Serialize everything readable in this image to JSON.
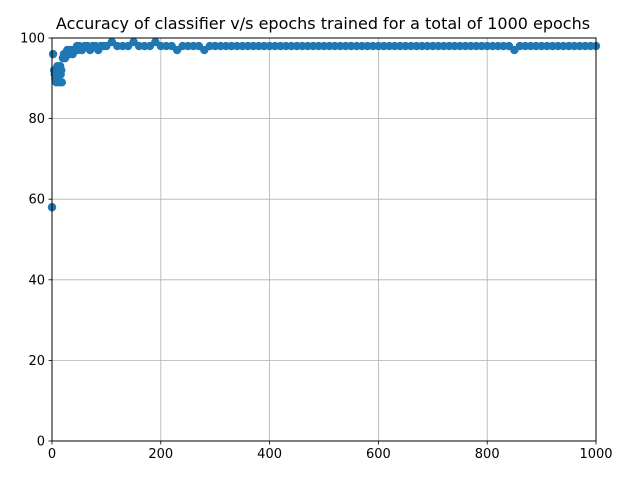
{
  "chart_data": {
    "type": "scatter",
    "title": "Accuracy of classifier v/s epochs trained for a total of 1000 epochs",
    "xlabel": "",
    "ylabel": "",
    "xlim": [
      0,
      1000
    ],
    "ylim": [
      0,
      100
    ],
    "xticks": [
      0,
      200,
      400,
      600,
      800,
      1000
    ],
    "yticks": [
      0,
      20,
      40,
      60,
      80,
      100
    ],
    "grid": true,
    "marker_color": "#1f77b4",
    "series": [
      {
        "x": [
          0,
          2,
          4,
          5,
          6,
          7,
          8,
          9,
          10,
          11,
          12,
          13,
          14,
          15,
          16,
          17,
          18,
          20,
          22,
          24,
          26,
          28,
          30,
          32,
          34,
          36,
          38,
          40,
          42,
          44,
          46,
          48,
          50,
          55,
          60,
          65,
          70,
          75,
          80,
          85,
          90,
          95,
          100,
          110,
          120,
          130,
          140,
          150,
          160,
          170,
          180,
          190,
          200,
          210,
          220,
          230,
          240,
          250,
          260,
          270,
          280,
          290,
          300,
          310,
          320,
          330,
          340,
          350,
          360,
          370,
          380,
          390,
          400,
          410,
          420,
          430,
          440,
          450,
          460,
          470,
          480,
          490,
          500,
          510,
          520,
          530,
          540,
          550,
          560,
          570,
          580,
          590,
          600,
          610,
          620,
          630,
          640,
          650,
          660,
          670,
          680,
          690,
          700,
          710,
          720,
          730,
          740,
          750,
          760,
          770,
          780,
          790,
          800,
          810,
          820,
          830,
          840,
          850,
          860,
          870,
          880,
          890,
          900,
          910,
          920,
          930,
          940,
          950,
          960,
          970,
          980,
          990,
          1000
        ],
        "y": [
          58,
          96,
          92,
          91,
          90,
          92,
          89,
          91,
          93,
          92,
          91,
          92,
          89,
          93,
          91,
          92,
          89,
          95,
          96,
          95,
          96,
          97,
          97,
          96,
          97,
          97,
          96,
          97,
          97,
          97,
          98,
          97,
          98,
          97,
          98,
          98,
          97,
          98,
          98,
          97,
          98,
          98,
          98,
          99,
          98,
          98,
          98,
          99,
          98,
          98,
          98,
          99,
          98,
          98,
          98,
          97,
          98,
          98,
          98,
          98,
          97,
          98,
          98,
          98,
          98,
          98,
          98,
          98,
          98,
          98,
          98,
          98,
          98,
          98,
          98,
          98,
          98,
          98,
          98,
          98,
          98,
          98,
          98,
          98,
          98,
          98,
          98,
          98,
          98,
          98,
          98,
          98,
          98,
          98,
          98,
          98,
          98,
          98,
          98,
          98,
          98,
          98,
          98,
          98,
          98,
          98,
          98,
          98,
          98,
          98,
          98,
          98,
          98,
          98,
          98,
          98,
          98,
          97,
          98,
          98,
          98,
          98,
          98,
          98,
          98,
          98,
          98,
          98,
          98,
          98,
          98,
          98,
          98
        ]
      }
    ]
  }
}
